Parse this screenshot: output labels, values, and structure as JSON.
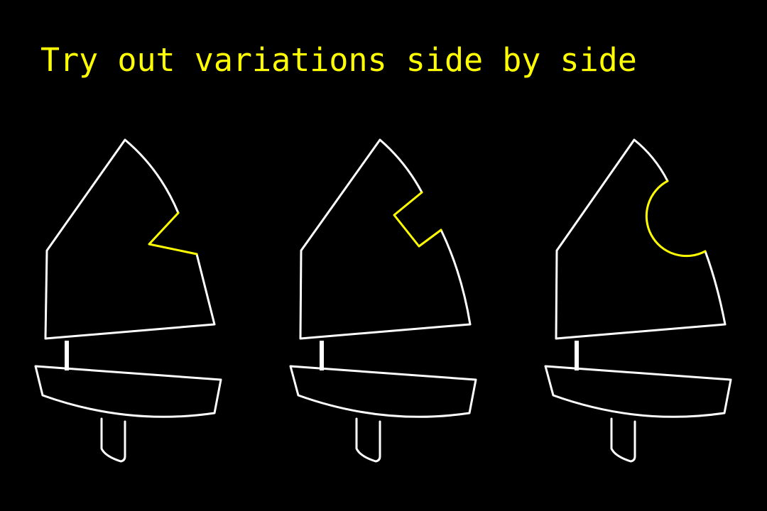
{
  "title": "Try out variations side by side",
  "colors": {
    "background": "#000000",
    "outline": "#ffffff",
    "highlight": "#ffff00"
  },
  "variations": [
    {
      "name": "boat-variation-1",
      "notch": "triangular"
    },
    {
      "name": "boat-variation-2",
      "notch": "rectangular"
    },
    {
      "name": "boat-variation-3",
      "notch": "rounded"
    }
  ]
}
